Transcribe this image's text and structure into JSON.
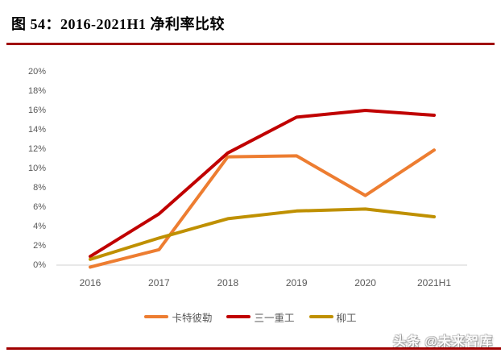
{
  "header": {
    "title": "图 54：2016-2021H1 净利率比较",
    "underline_color": "#A00000"
  },
  "chart_data": {
    "type": "line",
    "title": "2016-2021H1 净利率比较",
    "categories": [
      "2016",
      "2017",
      "2018",
      "2019",
      "2020",
      "2021H1"
    ],
    "series": [
      {
        "name": "卡特彼勒",
        "color": "#ED7D31",
        "values": [
          -0.2,
          1.6,
          11.2,
          11.3,
          7.2,
          11.9
        ]
      },
      {
        "name": "三一重工",
        "color": "#C00000",
        "values": [
          0.9,
          5.3,
          11.6,
          15.3,
          16.0,
          15.5
        ]
      },
      {
        "name": "柳工",
        "color": "#BF9000",
        "values": [
          0.6,
          2.8,
          4.8,
          5.6,
          5.8,
          5.0
        ]
      }
    ],
    "xlabel": "",
    "ylabel": "",
    "ylim": [
      0,
      20
    ],
    "ytick_step": 2,
    "ytick_suffix": "%",
    "grid": false,
    "legend_position": "bottom",
    "axis_label_color": "#595959",
    "axis_line_color": "#D9D9D9"
  },
  "watermark": {
    "text": "头条 @未来智库"
  },
  "footer": {
    "line_color": "#A00000"
  }
}
